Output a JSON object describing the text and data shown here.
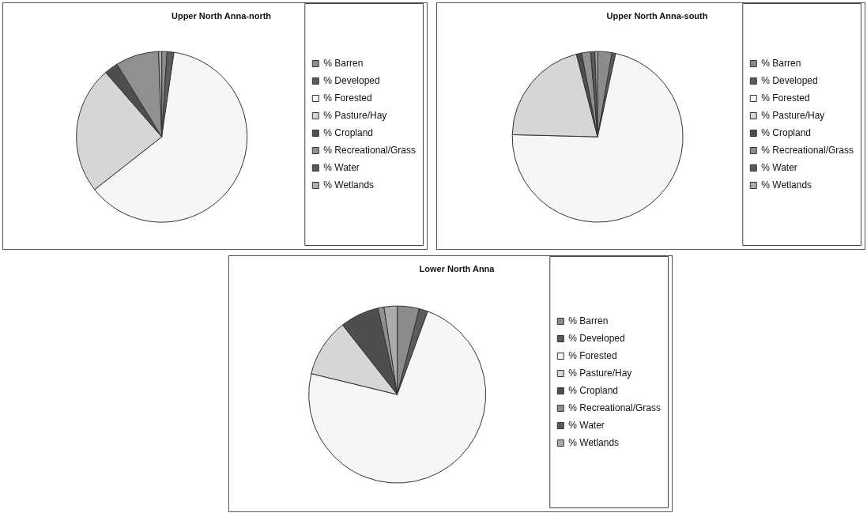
{
  "chart_data": [
    {
      "type": "pie",
      "title": "Upper North Anna-north",
      "categories": [
        "% Barren",
        "% Developed",
        "% Forested",
        "% Pasture/Hay",
        "% Cropland",
        "% Recreational/Grass",
        "% Water",
        "% Wetlands"
      ],
      "values": [
        1.0,
        1.3,
        62.1,
        24.2,
        2.6,
        8.2,
        null,
        0.6
      ],
      "colors": [
        "#8c8c8c",
        "#5c5c5c",
        "#f6f6f6",
        "#d6d6d6",
        "#4e4e4e",
        "#909090",
        "#5a5a5a",
        "#acacac"
      ],
      "legend": "right"
    },
    {
      "type": "pie",
      "title": "Upper North Anna-south",
      "categories": [
        "% Barren",
        "% Developed",
        "% Forested",
        "% Pasture/Hay",
        "% Cropland",
        "% Recreational/Grass",
        "% Water",
        "% Wetlands"
      ],
      "values": [
        2.7,
        0.7,
        72.0,
        20.6,
        1.0,
        1.7,
        0.8,
        0.5
      ],
      "colors": [
        "#8c8c8c",
        "#5c5c5c",
        "#f6f6f6",
        "#d6d6d6",
        "#4e4e4e",
        "#909090",
        "#5a5a5a",
        "#acacac"
      ],
      "legend": "right"
    },
    {
      "type": "pie",
      "title": "Lower North Anna",
      "categories": [
        "% Barren",
        "% Developed",
        "% Forested",
        "% Pasture/Hay",
        "% Cropland",
        "% Recreational/Grass",
        "% Water",
        "% Wetlands"
      ],
      "values": [
        4.0,
        1.6,
        73.2,
        10.6,
        7.1,
        1.1,
        null,
        2.4
      ],
      "colors": [
        "#8c8c8c",
        "#5c5c5c",
        "#f6f6f6",
        "#d6d6d6",
        "#4e4e4e",
        "#909090",
        "#5a5a5a",
        "#acacac"
      ],
      "legend": "right"
    }
  ]
}
